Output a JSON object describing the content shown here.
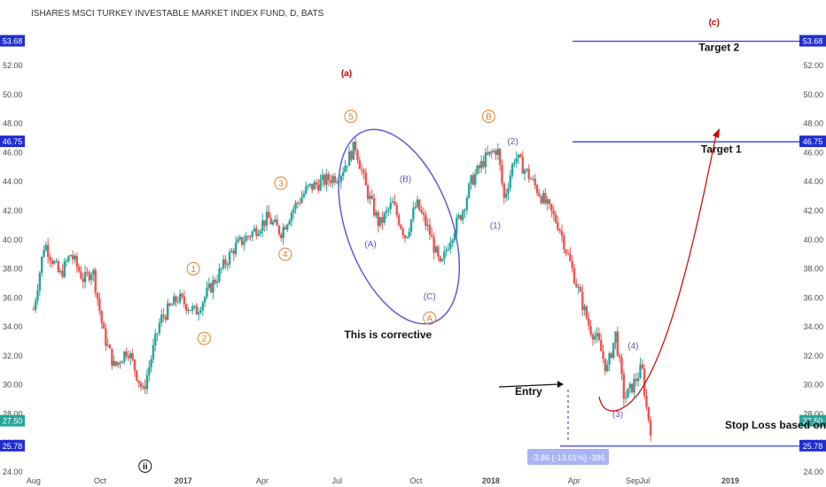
{
  "chart_data": {
    "type": "candlestick",
    "title": "ISHARES MSCI TURKEY INVESTABLE MARKET INDEX FUND, D, BATS",
    "ylim": [
      24,
      55.3
    ],
    "y_ticks": [
      "24.00",
      "26.00",
      "28.00",
      "30.00",
      "32.00",
      "34.00",
      "36.00",
      "38.00",
      "40.00",
      "42.00",
      "44.00",
      "46.00",
      "48.00",
      "50.00",
      "52.00"
    ],
    "x_ticks": [
      "Aug",
      "Oct",
      "2017",
      "Apr",
      "Jul",
      "Oct",
      "2018",
      "Apr",
      "Jul",
      "Sep",
      "2019"
    ],
    "colors": {
      "up": "#26a69a",
      "down": "#ef5350",
      "line": "#1f2dd1",
      "circle": "#5b5be0",
      "red": "#cc0000",
      "orange": "#d9822b",
      "purple": "#6a4fb5"
    },
    "path": [
      [
        0.0,
        35.2
      ],
      [
        0.025,
        39.8
      ],
      [
        0.06,
        37.5
      ],
      [
        0.085,
        39.0
      ],
      [
        0.115,
        37.2
      ],
      [
        0.135,
        38.0
      ],
      [
        0.16,
        33.5
      ],
      [
        0.185,
        31.2
      ],
      [
        0.215,
        32.5
      ],
      [
        0.25,
        29.5
      ],
      [
        0.29,
        34.5
      ],
      [
        0.33,
        36.0
      ],
      [
        0.37,
        35.0
      ],
      [
        0.42,
        37.5
      ],
      [
        0.46,
        39.5
      ],
      [
        0.5,
        40.5
      ],
      [
        0.535,
        41.5
      ],
      [
        0.565,
        40.5
      ],
      [
        0.59,
        42.0
      ],
      [
        0.625,
        43.5
      ],
      [
        0.66,
        44.0
      ],
      [
        0.7,
        44.5
      ],
      [
        0.735,
        46.5
      ],
      [
        0.76,
        43.5
      ],
      [
        0.79,
        41.0
      ],
      [
        0.82,
        42.5
      ],
      [
        0.85,
        40.2
      ],
      [
        0.875,
        42.5
      ],
      [
        0.905,
        40.5
      ],
      [
        0.93,
        38.0
      ],
      [
        0.95,
        40.0
      ],
      [
        0.98,
        42.0
      ],
      [
        1.0,
        44.0
      ],
      [
        1.03,
        45.5
      ],
      [
        1.06,
        46.3
      ],
      [
        1.075,
        42.8
      ],
      [
        1.1,
        45.8
      ],
      [
        1.13,
        44.5
      ],
      [
        1.16,
        43.0
      ],
      [
        1.2,
        41.0
      ],
      [
        1.24,
        37.0
      ],
      [
        1.27,
        34.0
      ],
      [
        1.29,
        33.0
      ],
      [
        1.31,
        31.0
      ],
      [
        1.33,
        33.5
      ],
      [
        1.35,
        29.0
      ],
      [
        1.37,
        30.0
      ],
      [
        1.39,
        31.2
      ],
      [
        1.4,
        28.5
      ],
      [
        1.41,
        27.0
      ]
    ],
    "levels": [
      {
        "name": "Target 2",
        "value": 53.68,
        "price_label": "53.68",
        "box": "#1f2dd1"
      },
      {
        "name": "Target 1",
        "value": 46.75,
        "price_label": "46.75",
        "box": "#1f2dd1"
      },
      {
        "name": "",
        "value": 25.78,
        "price_label": "25.78",
        "box": "#1f2dd1"
      }
    ],
    "last_price": {
      "value": 27.5,
      "label": "27.50",
      "box": "#26a69a"
    },
    "wave_labels": [
      {
        "text": "(a)",
        "date": 0.715,
        "price": 51.5,
        "color": "#cc0000",
        "circle": false
      },
      {
        "text": "(c)",
        "date": 1.555,
        "price": 55.0,
        "color": "#cc0000",
        "circle": false
      },
      {
        "text": "1",
        "date": 0.365,
        "price": 38.0,
        "color": "#d9822b",
        "circle": true
      },
      {
        "text": "2",
        "date": 0.39,
        "price": 33.2,
        "color": "#d9822b",
        "circle": true
      },
      {
        "text": "3",
        "date": 0.565,
        "price": 43.9,
        "color": "#d9822b",
        "circle": true
      },
      {
        "text": "4",
        "date": 0.575,
        "price": 39.0,
        "color": "#d9822b",
        "circle": true
      },
      {
        "text": "5",
        "date": 0.725,
        "price": 48.5,
        "color": "#d9822b",
        "circle": true
      },
      {
        "text": "A",
        "date": 0.905,
        "price": 34.6,
        "color": "#d9822b",
        "circle": true
      },
      {
        "text": "B",
        "date": 1.04,
        "price": 48.5,
        "color": "#d9822b",
        "circle": true
      },
      {
        "text": "(A)",
        "date": 0.77,
        "price": 39.7,
        "color": "#6a4fb5",
        "circle": false
      },
      {
        "text": "(B)",
        "date": 0.85,
        "price": 44.2,
        "color": "#6a4fb5",
        "circle": false
      },
      {
        "text": "(C)",
        "date": 0.905,
        "price": 36.1,
        "color": "#6a4fb5",
        "circle": false
      },
      {
        "text": "(1)",
        "date": 1.055,
        "price": 41.0,
        "color": "#6a4fb5",
        "circle": false
      },
      {
        "text": "(2)",
        "date": 1.095,
        "price": 46.8,
        "color": "#6a4fb5",
        "circle": false
      },
      {
        "text": "(3)",
        "date": 1.335,
        "price": 28.0,
        "color": "#6a4fb5",
        "circle": false
      },
      {
        "text": "(4)",
        "date": 1.37,
        "price": 32.7,
        "color": "#6a4fb5",
        "circle": false
      },
      {
        "text": "ii",
        "date": 0.255,
        "price": 24.4,
        "color": "#111111",
        "circle": true
      }
    ],
    "notes": [
      {
        "text": "Target 2",
        "date": 1.52,
        "price": 53.0
      },
      {
        "text": "Target 1",
        "date": 1.525,
        "price": 46.0
      },
      {
        "text": "This is corrective",
        "date": 0.71,
        "price": 33.2
      },
      {
        "text": "Entry",
        "date": 1.1,
        "price": 29.3
      },
      {
        "text": "Stop Loss based on ATR",
        "date": 1.58,
        "price": 27.0
      }
    ],
    "measure_label": "-3.86 (-13.01%) -386",
    "corrective_circle": {
      "center_date": 0.835,
      "center_price": 40.9,
      "rx_days": 0.12,
      "ry_price": 7.0
    }
  }
}
